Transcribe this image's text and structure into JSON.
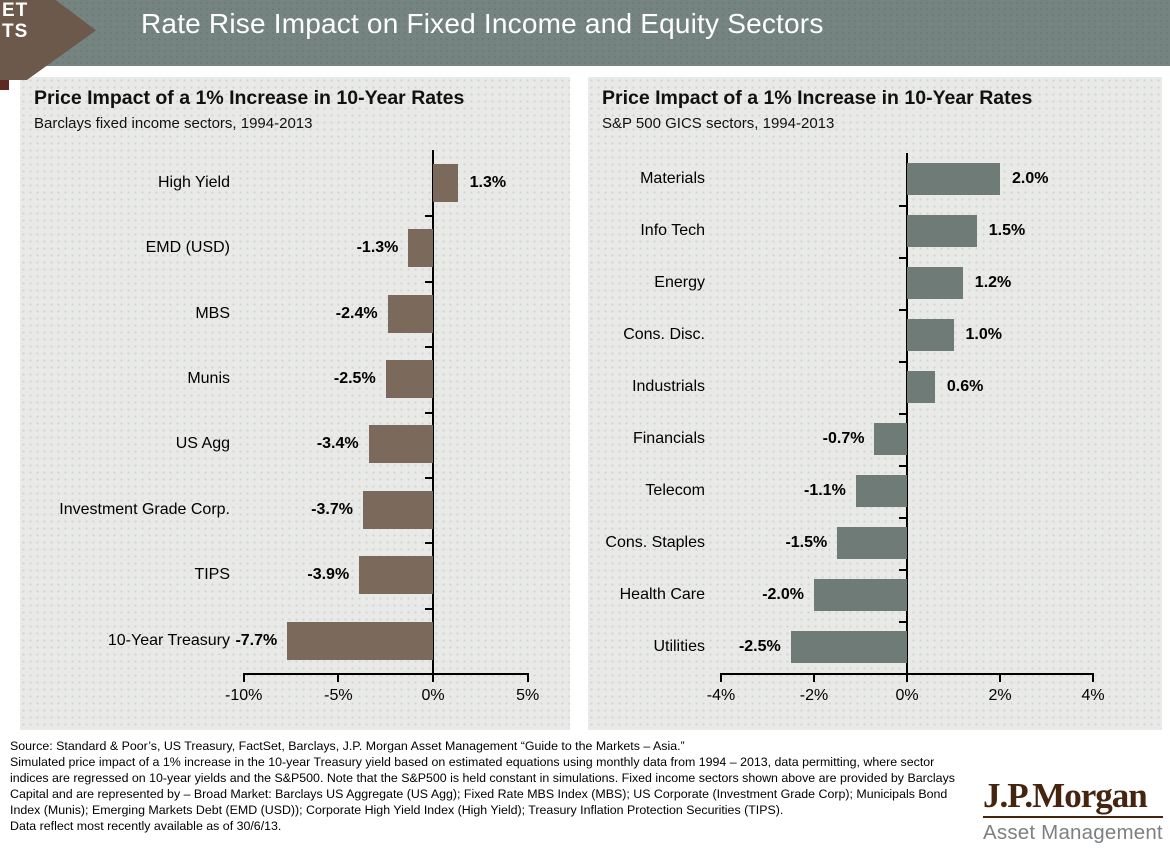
{
  "header": {
    "title": "Rate Rise Impact on Fixed Income and Equity Sectors"
  },
  "badge": {
    "line1": "ET",
    "line2": "TS"
  },
  "chart_data": [
    {
      "type": "bar",
      "orientation": "horizontal",
      "title": "Price Impact of a 1% Increase in 10-Year Rates",
      "subtitle": "Barclays fixed income sectors, 1994-2013",
      "categories": [
        "High Yield",
        "EMD (USD)",
        "MBS",
        "Munis",
        "US Agg",
        "Investment Grade Corp.",
        "TIPS",
        "10-Year Treasury"
      ],
      "values": [
        1.3,
        -1.3,
        -2.4,
        -2.5,
        -3.4,
        -3.7,
        -3.9,
        -7.7
      ],
      "value_labels": [
        "1.3%",
        "-1.3%",
        "-2.4%",
        "-2.5%",
        "-3.4%",
        "-3.7%",
        "-3.9%",
        "-7.7%"
      ],
      "xlim": [
        -10,
        5
      ],
      "x_ticks": [
        -10,
        -5,
        0,
        5
      ],
      "x_tick_labels": [
        "-10%",
        "-5%",
        "0%",
        "5%"
      ],
      "xlabel": "",
      "ylabel": "",
      "grid": false,
      "legend": "none",
      "bar_color": "#7b6a5b"
    },
    {
      "type": "bar",
      "orientation": "horizontal",
      "title": "Price Impact of a 1% Increase in 10-Year Rates",
      "subtitle": "S&P 500 GICS sectors, 1994-2013",
      "categories": [
        "Materials",
        "Info Tech",
        "Energy",
        "Cons. Disc.",
        "Industrials",
        "Financials",
        "Telecom",
        "Cons. Staples",
        "Health Care",
        "Utilities"
      ],
      "values": [
        2.0,
        1.5,
        1.2,
        1.0,
        0.6,
        -0.7,
        -1.1,
        -1.5,
        -2.0,
        -2.5
      ],
      "value_labels": [
        "2.0%",
        "1.5%",
        "1.2%",
        "1.0%",
        "0.6%",
        "-0.7%",
        "-1.1%",
        "-1.5%",
        "-2.0%",
        "-2.5%"
      ],
      "xlim": [
        -4,
        4
      ],
      "x_ticks": [
        -4,
        -2,
        0,
        2,
        4
      ],
      "x_tick_labels": [
        "-4%",
        "-2%",
        "0%",
        "2%",
        "4%"
      ],
      "xlabel": "",
      "ylabel": "",
      "grid": false,
      "legend": "none",
      "bar_color": "#6e7b77"
    }
  ],
  "footer": {
    "lines": [
      "Source: Standard & Poor’s, US Treasury, FactSet, Barclays, J.P. Morgan Asset Management “Guide to the Markets – Asia.”",
      "Simulated price impact of a 1% increase in the 10-year Treasury yield based on estimated equations using monthly data from 1994 – 2013, data permitting, where sector",
      "indices are regressed on 10-year yields and the S&P500.  Note that the S&P500 is held constant in simulations. Fixed income sectors shown above are provided by Barclays",
      "Capital and are represented by – Broad Market: Barclays US Aggregate (US Agg); Fixed Rate MBS Index (MBS); US Corporate (Investment Grade Corp); Municipals Bond",
      "Index (Munis); Emerging Markets Debt (EMD (USD)); Corporate High Yield Index (High Yield); Treasury Inflation Protection Securities (TIPS).",
      "Data reflect most recently available as of 30/6/13."
    ]
  },
  "logo": {
    "brand": "J.P.Morgan",
    "division": "Asset Management"
  },
  "colors": {
    "header_background": "#758480",
    "badge_brown": "#6d594b",
    "badge_maroon": "#5e2823",
    "panel_background": "#e9e9e7",
    "fixed_income_bar": "#7b6a5b",
    "equity_bar": "#6e7b77",
    "logo_brown": "#45250f",
    "logo_gray": "#7d8083"
  }
}
